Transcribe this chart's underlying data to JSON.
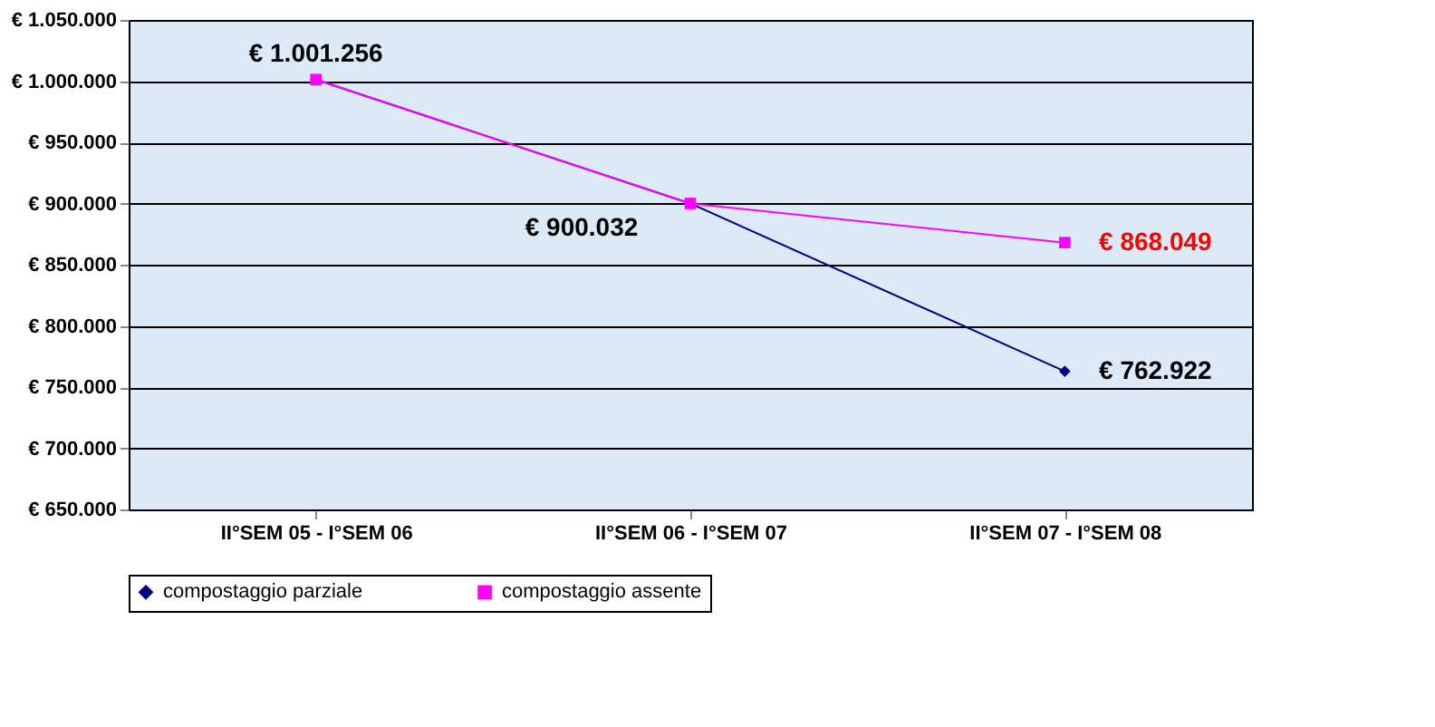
{
  "chart_data": {
    "type": "line",
    "categories": [
      "II°SEM 05 - I°SEM  06",
      "II°SEM 06 - I°SEM  07",
      "II°SEM    07 - I°SEM 08"
    ],
    "series": [
      {
        "name": "compostaggio parziale",
        "color": "#000080",
        "marker": "diamond",
        "values": [
          1001256,
          900032,
          762922
        ],
        "value_labels": [
          "€ 1.001.256",
          "€ 900.032",
          "€ 762.922"
        ]
      },
      {
        "name": "compostaggio assente",
        "color": "#ff00ff",
        "marker": "square",
        "values": [
          1001256,
          900032,
          868049
        ],
        "value_labels": [
          null,
          null,
          "€ 868.049"
        ]
      }
    ],
    "ylim": [
      650000,
      1050000
    ],
    "yticks": [
      {
        "value": 650000,
        "label": "€ 650.000"
      },
      {
        "value": 700000,
        "label": "€ 700.000"
      },
      {
        "value": 750000,
        "label": "€ 750.000"
      },
      {
        "value": 800000,
        "label": "€ 800.000"
      },
      {
        "value": 850000,
        "label": "€ 850.000"
      },
      {
        "value": 900000,
        "label": "€ 900.000"
      },
      {
        "value": 950000,
        "label": "€ 950.000"
      },
      {
        "value": 1000000,
        "label": "€ 1.000.000"
      },
      {
        "value": 1050000,
        "label": "€ 1.050.000"
      }
    ],
    "grid": "y",
    "legend": "bottom"
  }
}
